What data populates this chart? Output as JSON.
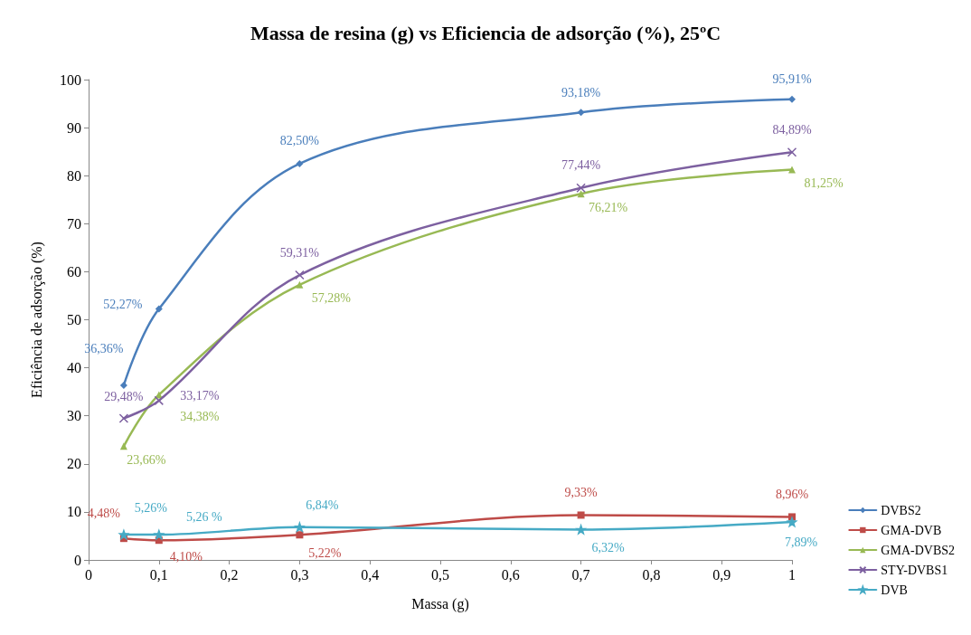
{
  "chart_data": {
    "type": "line",
    "title": "Massa de resina (g) vs Eficiencia de adsorção (%), 25ºC",
    "xlabel": "Massa (g)",
    "ylabel": "Eficiência de adsorção (%)",
    "x": [
      0.05,
      0.1,
      0.3,
      0.7,
      1
    ],
    "xlim": [
      0,
      1
    ],
    "xticks": [
      0,
      {
        "value": 0.1,
        "label": "0,1"
      },
      {
        "value": 0.2,
        "label": "0,2"
      },
      {
        "value": 0.3,
        "label": "0,3"
      },
      {
        "value": 0.4,
        "label": "0,4"
      },
      {
        "value": 0.5,
        "label": "0,5"
      },
      {
        "value": 0.6,
        "label": "0,6"
      },
      {
        "value": 0.7,
        "label": "0,7"
      },
      {
        "value": 0.8,
        "label": "0,8"
      },
      {
        "value": 0.9,
        "label": "0,9"
      },
      1
    ],
    "ylim": [
      0,
      100
    ],
    "yticks": [
      0,
      10,
      20,
      30,
      40,
      50,
      60,
      70,
      80,
      90,
      100
    ],
    "grid": false,
    "legend": "bottom right",
    "series": [
      {
        "name": "DVBS2",
        "color": "#4a7ebb",
        "marker": "diamond",
        "values": [
          36.36,
          52.27,
          82.5,
          93.18,
          95.91
        ],
        "value_labels": [
          "36,36%",
          "52,27%",
          "82,50%",
          "93,18%",
          "95,91%"
        ]
      },
      {
        "name": "GMA-DVB",
        "color": "#be4b48",
        "marker": "square",
        "values": [
          4.48,
          4.1,
          5.22,
          9.33,
          8.96
        ],
        "value_labels": [
          "4,48%",
          "4,10%",
          "5,22%",
          "9,33%",
          "8,96%"
        ]
      },
      {
        "name": "GMA-DVBS2",
        "color": "#98b954",
        "marker": "triangle",
        "values": [
          23.66,
          34.38,
          57.28,
          76.21,
          81.25
        ],
        "value_labels": [
          "23,66%",
          "34,38%",
          "57,28%",
          "76,21%",
          "81,25%"
        ]
      },
      {
        "name": "STY-DVBS1",
        "color": "#7d60a0",
        "marker": "cross",
        "values": [
          29.48,
          33.17,
          59.31,
          77.44,
          84.89
        ],
        "value_labels": [
          "29,48%",
          "33,17%",
          "59,31%",
          "77,44%",
          "84,89%"
        ]
      },
      {
        "name": "DVB",
        "color": "#46aac5",
        "marker": "star",
        "values": [
          5.26,
          5.26,
          6.84,
          6.32,
          7.89
        ],
        "value_labels": [
          "5,26%",
          "5,26 %",
          "6,84%",
          "6,32%",
          "7,89%"
        ]
      }
    ]
  }
}
